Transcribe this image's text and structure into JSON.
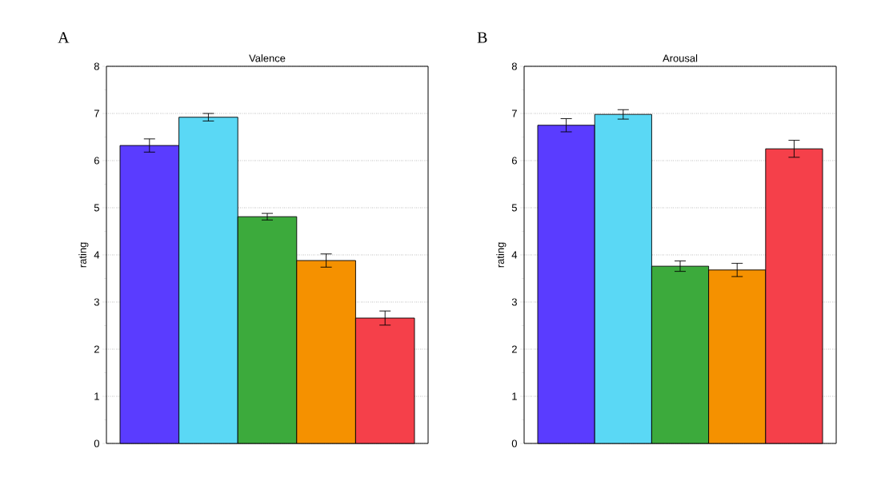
{
  "chart_data": [
    {
      "type": "bar",
      "title": "Valence",
      "ylabel": "rating",
      "annotations": [
        "A"
      ],
      "categories": [
        null,
        null,
        null,
        null,
        null
      ],
      "values": [
        6.32,
        6.92,
        4.81,
        3.88,
        2.66
      ],
      "errors": [
        0.14,
        0.08,
        0.07,
        0.14,
        0.15
      ],
      "colors": [
        "#5a3cff",
        "#5ad8f5",
        "#3caa3c",
        "#f59100",
        "#f5404a"
      ],
      "ylim": [
        0,
        8
      ],
      "yticks": [
        0,
        1,
        2,
        3,
        4,
        5,
        6,
        7,
        8
      ],
      "grid": "y"
    },
    {
      "type": "bar",
      "title": "Arousal",
      "ylabel": "rating",
      "annotations": [
        "B"
      ],
      "categories": [
        null,
        null,
        null,
        null,
        null
      ],
      "values": [
        6.75,
        6.98,
        3.76,
        3.68,
        6.25
      ],
      "errors": [
        0.14,
        0.1,
        0.11,
        0.14,
        0.18
      ],
      "colors": [
        "#5a3cff",
        "#5ad8f5",
        "#3caa3c",
        "#f59100",
        "#f5404a"
      ],
      "ylim": [
        0,
        8
      ],
      "yticks": [
        0,
        1,
        2,
        3,
        4,
        5,
        6,
        7,
        8
      ],
      "grid": "y"
    }
  ]
}
